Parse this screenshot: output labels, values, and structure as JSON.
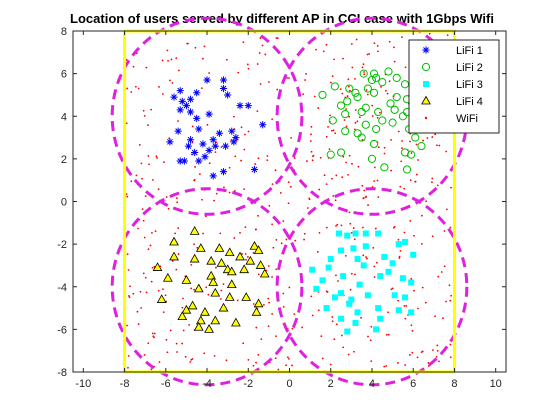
{
  "chart_data": {
    "type": "scatter",
    "title": "Location of users served by different AP in CCI case with 1Gbps Wifi",
    "xlabel": "",
    "ylabel": "",
    "xlim": [
      -10.5,
      10.5
    ],
    "ylim": [
      -8,
      8
    ],
    "xticks": [
      -10,
      -8,
      -6,
      -4,
      -2,
      0,
      2,
      4,
      6,
      8,
      10
    ],
    "yticks": [
      -8,
      -6,
      -4,
      -2,
      0,
      2,
      4,
      6,
      8
    ],
    "grid": false,
    "legend_position": "top-right",
    "room_boundary": {
      "x": [
        -8,
        8
      ],
      "y": [
        -8,
        8
      ],
      "color": "#ffff00"
    },
    "coverage_circles": {
      "color": "#e020e0",
      "radius": 4.6,
      "centers": [
        [
          -4,
          4
        ],
        [
          4,
          4
        ],
        [
          -4,
          -4
        ],
        [
          4,
          -4
        ]
      ]
    },
    "series": [
      {
        "name": "LiFi 1",
        "marker": "asterisk",
        "color": "#0000ff",
        "points": [
          [
            -5.3,
            5.2
          ],
          [
            -4.5,
            5.1
          ],
          [
            -4.0,
            5.7
          ],
          [
            -3.2,
            5.7
          ],
          [
            -3.2,
            5.3
          ],
          [
            -5.6,
            4.9
          ],
          [
            -5.2,
            4.7
          ],
          [
            -4.8,
            4.8
          ],
          [
            -5.0,
            4.5
          ],
          [
            -4.8,
            4.2
          ],
          [
            -5.3,
            4.3
          ],
          [
            -4.5,
            3.9
          ],
          [
            -3.9,
            4.1
          ],
          [
            -3.0,
            5.0
          ],
          [
            -2.4,
            4.5
          ],
          [
            -2.0,
            4.5
          ],
          [
            -1.3,
            3.6
          ],
          [
            -5.4,
            3.3
          ],
          [
            -4.4,
            3.4
          ],
          [
            -5.8,
            2.8
          ],
          [
            -4.8,
            2.9
          ],
          [
            -4.2,
            2.7
          ],
          [
            -3.4,
            3.2
          ],
          [
            -2.8,
            3.3
          ],
          [
            -2.6,
            3.0
          ],
          [
            -3.9,
            2.4
          ],
          [
            -3.1,
            2.6
          ],
          [
            -2.7,
            2.8
          ],
          [
            -4.9,
            2.6
          ],
          [
            -5.1,
            1.9
          ],
          [
            -5.3,
            1.9
          ],
          [
            -4.4,
            1.9
          ],
          [
            -4.6,
            2.3
          ],
          [
            -4.1,
            2.1
          ],
          [
            -3.2,
            1.4
          ],
          [
            -3.7,
            1.2
          ],
          [
            -1.7,
            1.5
          ],
          [
            -3.6,
            2.6
          ],
          [
            -3.7,
            2.9
          ]
        ]
      },
      {
        "name": "LiFi 2",
        "marker": "circle",
        "color": "#00c000",
        "points": [
          [
            3.6,
            6.0
          ],
          [
            4.1,
            6.0
          ],
          [
            4.8,
            6.1
          ],
          [
            2.2,
            5.4
          ],
          [
            2.9,
            5.3
          ],
          [
            4.0,
            5.7
          ],
          [
            4.2,
            5.8
          ],
          [
            4.5,
            5.6
          ],
          [
            5.2,
            5.8
          ],
          [
            5.6,
            5.5
          ],
          [
            3.2,
            5.1
          ],
          [
            3.8,
            5.3
          ],
          [
            1.6,
            5.0
          ],
          [
            4.1,
            5.1
          ],
          [
            3.3,
            4.9
          ],
          [
            5.2,
            4.9
          ],
          [
            2.8,
            4.7
          ],
          [
            5.7,
            4.8
          ],
          [
            2.5,
            4.5
          ],
          [
            3.7,
            4.4
          ],
          [
            4.3,
            4.2
          ],
          [
            4.9,
            4.6
          ],
          [
            2.7,
            4.1
          ],
          [
            3.5,
            4.2
          ],
          [
            5.1,
            4.3
          ],
          [
            2.1,
            3.8
          ],
          [
            3.7,
            3.6
          ],
          [
            4.5,
            3.8
          ],
          [
            5.7,
            4.2
          ],
          [
            4.2,
            3.4
          ],
          [
            5.0,
            3.7
          ],
          [
            5.5,
            4.0
          ],
          [
            2.7,
            3.3
          ],
          [
            3.3,
            3.2
          ],
          [
            5.8,
            3.4
          ],
          [
            3.5,
            3.0
          ],
          [
            4.1,
            2.7
          ],
          [
            6.1,
            3.0
          ],
          [
            2.0,
            2.2
          ],
          [
            4.0,
            2.0
          ],
          [
            5.6,
            2.3
          ],
          [
            5.9,
            2.2
          ],
          [
            4.6,
            1.6
          ],
          [
            5.7,
            1.5
          ],
          [
            6.4,
            2.6
          ],
          [
            2.5,
            2.3
          ]
        ]
      },
      {
        "name": "LiFi 3",
        "marker": "square",
        "color": "#00ffff",
        "points": [
          [
            2.4,
            -1.5
          ],
          [
            3.2,
            -1.5
          ],
          [
            3.7,
            -1.5
          ],
          [
            4.3,
            -1.5
          ],
          [
            2.8,
            -1.6
          ],
          [
            2.5,
            -2.3
          ],
          [
            3.1,
            -2.2
          ],
          [
            3.7,
            -2.1
          ],
          [
            5.3,
            -2.0
          ],
          [
            5.6,
            -1.9
          ],
          [
            2.0,
            -2.7
          ],
          [
            3.3,
            -2.7
          ],
          [
            4.6,
            -2.6
          ],
          [
            5.0,
            -2.9
          ],
          [
            6.0,
            -2.5
          ],
          [
            1.1,
            -3.2
          ],
          [
            1.9,
            -3.1
          ],
          [
            3.6,
            -3.0
          ],
          [
            4.8,
            -3.3
          ],
          [
            5.5,
            -3.6
          ],
          [
            1.6,
            -3.7
          ],
          [
            2.6,
            -3.5
          ],
          [
            3.4,
            -3.9
          ],
          [
            4.4,
            -3.5
          ],
          [
            5.9,
            -3.8
          ],
          [
            1.3,
            -4.1
          ],
          [
            2.2,
            -4.5
          ],
          [
            2.5,
            -4.3
          ],
          [
            3.0,
            -4.6
          ],
          [
            3.8,
            -4.4
          ],
          [
            5.1,
            -4.4
          ],
          [
            5.6,
            -4.5
          ],
          [
            1.8,
            -5.0
          ],
          [
            2.9,
            -4.8
          ],
          [
            3.3,
            -5.2
          ],
          [
            4.3,
            -5.0
          ],
          [
            5.3,
            -5.1
          ],
          [
            5.9,
            -5.2
          ],
          [
            2.5,
            -5.5
          ],
          [
            3.2,
            -5.7
          ],
          [
            4.4,
            -5.5
          ],
          [
            2.8,
            -6.1
          ],
          [
            4.2,
            -6.0
          ]
        ]
      },
      {
        "name": "LiFi 4",
        "marker": "triangle",
        "color": "#ffff00",
        "points": [
          [
            -4.6,
            -1.4
          ],
          [
            -5.6,
            -1.9
          ],
          [
            -4.3,
            -2.2
          ],
          [
            -3.4,
            -2.2
          ],
          [
            -2.9,
            -2.4
          ],
          [
            -1.7,
            -2.1
          ],
          [
            -1.5,
            -2.3
          ],
          [
            -5.6,
            -2.6
          ],
          [
            -4.6,
            -2.7
          ],
          [
            -3.8,
            -2.8
          ],
          [
            -3.3,
            -2.9
          ],
          [
            -2.4,
            -2.6
          ],
          [
            -1.9,
            -2.8
          ],
          [
            -1.4,
            -3.0
          ],
          [
            -6.4,
            -3.1
          ],
          [
            -3.0,
            -3.2
          ],
          [
            -2.2,
            -3.2
          ],
          [
            -2.8,
            -3.3
          ],
          [
            -1.2,
            -3.4
          ],
          [
            -5.9,
            -3.6
          ],
          [
            -3.8,
            -3.5
          ],
          [
            -5.0,
            -3.7
          ],
          [
            -3.7,
            -3.8
          ],
          [
            -2.8,
            -3.9
          ],
          [
            -2.9,
            -4.5
          ],
          [
            -3.6,
            -4.3
          ],
          [
            -4.4,
            -4.1
          ],
          [
            -6.2,
            -4.6
          ],
          [
            -3.2,
            -5.0
          ],
          [
            -4.7,
            -4.9
          ],
          [
            -1.5,
            -4.8
          ],
          [
            -5.0,
            -5.1
          ],
          [
            -4.1,
            -5.2
          ],
          [
            -4.3,
            -5.6
          ],
          [
            -3.6,
            -5.6
          ],
          [
            -1.6,
            -5.2
          ],
          [
            -5.2,
            -5.4
          ],
          [
            -2.6,
            -5.7
          ],
          [
            -3.9,
            -6.0
          ],
          [
            -4.4,
            -5.9
          ],
          [
            -2.1,
            -4.5
          ]
        ]
      },
      {
        "name": "WiFi",
        "marker": "dot",
        "color": "#ff0000",
        "count": 560
      }
    ]
  }
}
